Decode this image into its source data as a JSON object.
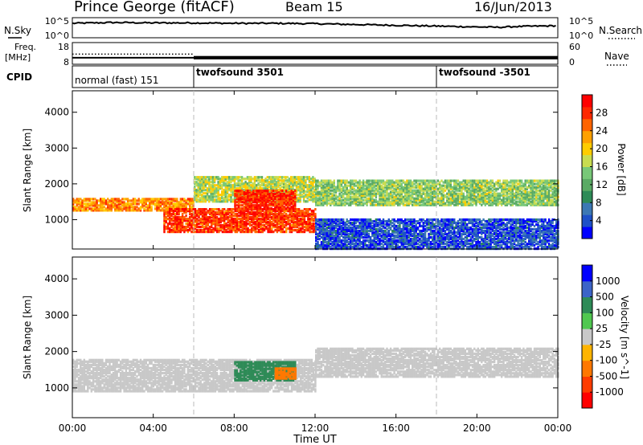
{
  "header": {
    "station": "Prince George (fitACF)",
    "beam": "Beam 15",
    "date": "16/Jun/2013"
  },
  "colors": {
    "background": "#ffffff",
    "axis": "#000000",
    "cpid_divider": "#bbbbbb"
  },
  "chart_data": [
    {
      "type": "line",
      "panel": "noise",
      "left_label": "N.Sky",
      "right_label": "N.Search",
      "yticks_left": [
        "10^5",
        "10^0"
      ],
      "yticks_right": [
        "10^5",
        "10^0"
      ],
      "series": [
        {
          "name": "N.Sky",
          "style": "solid",
          "x_hours": [
            0,
            2,
            4,
            6,
            8,
            10,
            12,
            14,
            16,
            18,
            20,
            21,
            22,
            24
          ],
          "values_log10": [
            3.6,
            3.8,
            3.7,
            3.7,
            3.6,
            3.6,
            3.5,
            3.3,
            3.1,
            2.9,
            2.7,
            2.6,
            2.8,
            3.0
          ]
        },
        {
          "name": "N.Search",
          "style": "dotted",
          "x_hours": [],
          "values_log10": []
        }
      ]
    },
    {
      "type": "line",
      "panel": "frequency",
      "left_label": [
        "Freq.",
        "[MHz]"
      ],
      "right_label": "Nave",
      "yticks_left": [
        "18",
        "8"
      ],
      "yticks_right": [
        "60",
        "0"
      ],
      "series": [
        {
          "name": "Freq.",
          "style": "solid",
          "x_hours": [
            0,
            6,
            6,
            24
          ],
          "values": [
            11,
            11,
            11,
            11
          ]
        },
        {
          "name": "Nave",
          "style": "dotted",
          "x_hours": [
            0,
            6,
            6,
            24
          ],
          "values": [
            28,
            28,
            14,
            14
          ]
        }
      ]
    },
    {
      "type": "table",
      "panel": "cpid",
      "left_label": "CPID",
      "segments": [
        {
          "start_hour": 0,
          "end_hour": 6,
          "label": "normal (fast) 151"
        },
        {
          "start_hour": 6,
          "end_hour": 18,
          "label": "twofsound 3501"
        },
        {
          "start_hour": 18,
          "end_hour": 24,
          "label": "twofsound -3501"
        }
      ]
    },
    {
      "type": "heatmap",
      "panel": "power",
      "ylabel": "Slant Range [km]",
      "yticks": [
        "1000",
        "2000",
        "3000",
        "4000"
      ],
      "ylim": [
        180,
        4600
      ],
      "xlim": [
        0,
        24
      ],
      "colorbar": {
        "label": "Power [dB]",
        "ticks": [
          "4",
          "8",
          "12",
          "16",
          "20",
          "24",
          "28"
        ],
        "range": [
          0,
          30
        ],
        "colors": [
          "#0000ff",
          "#1e50c8",
          "#3c78b4",
          "#2e8b57",
          "#5aaa64",
          "#78c878",
          "#c8dc50",
          "#ffcc00",
          "#ffa000",
          "#ff6400",
          "#ff2800",
          "#ff0000"
        ]
      },
      "echo_bands": [
        {
          "start_hour": 0,
          "end_hour": 6,
          "range_lo": 1250,
          "range_hi": 1600,
          "power": 22
        },
        {
          "start_hour": 4.5,
          "end_hour": 12,
          "range_lo": 650,
          "range_hi": 1300,
          "power": 26
        },
        {
          "start_hour": 6,
          "end_hour": 12,
          "range_lo": 1500,
          "range_hi": 2200,
          "power": 16
        },
        {
          "start_hour": 8,
          "end_hour": 11,
          "range_lo": 1300,
          "range_hi": 1800,
          "power": 27
        },
        {
          "start_hour": 12,
          "end_hour": 24,
          "range_lo": 1400,
          "range_hi": 2100,
          "power": 14
        },
        {
          "start_hour": 12,
          "end_hour": 24,
          "range_lo": 0,
          "range_hi": 1000,
          "power": 4
        }
      ]
    },
    {
      "type": "heatmap",
      "panel": "velocity",
      "ylabel": "Slant Range [km]",
      "yticks": [
        "1000",
        "2000",
        "3000",
        "4000"
      ],
      "ylim": [
        180,
        4600
      ],
      "xlim": [
        0,
        24
      ],
      "xlabel": "Time UT",
      "xticks": [
        "00:00",
        "04:00",
        "08:00",
        "12:00",
        "16:00",
        "20:00",
        "00:00"
      ],
      "colorbar": {
        "label": "Velocity [m s^-1]",
        "ticks": [
          "1000",
          "500",
          "100",
          "25",
          "-25",
          "-100",
          "-500",
          "-1000"
        ],
        "colors": [
          "#0000ff",
          "#3c64c8",
          "#2e8b57",
          "#50c850",
          "#c8c8c8",
          "#ffb400",
          "#ff7800",
          "#ff3c00",
          "#ff0000"
        ]
      },
      "echo_bands": [
        {
          "start_hour": 0,
          "end_hour": 12,
          "range_lo": 900,
          "range_hi": 1800,
          "velocity": 0
        },
        {
          "start_hour": 8,
          "end_hour": 11,
          "range_lo": 1200,
          "range_hi": 1700,
          "velocity": 150
        },
        {
          "start_hour": 10,
          "end_hour": 11,
          "range_lo": 1250,
          "range_hi": 1550,
          "velocity": -150
        },
        {
          "start_hour": 12,
          "end_hour": 24,
          "range_lo": 1300,
          "range_hi": 2100,
          "velocity": 0
        }
      ]
    }
  ]
}
